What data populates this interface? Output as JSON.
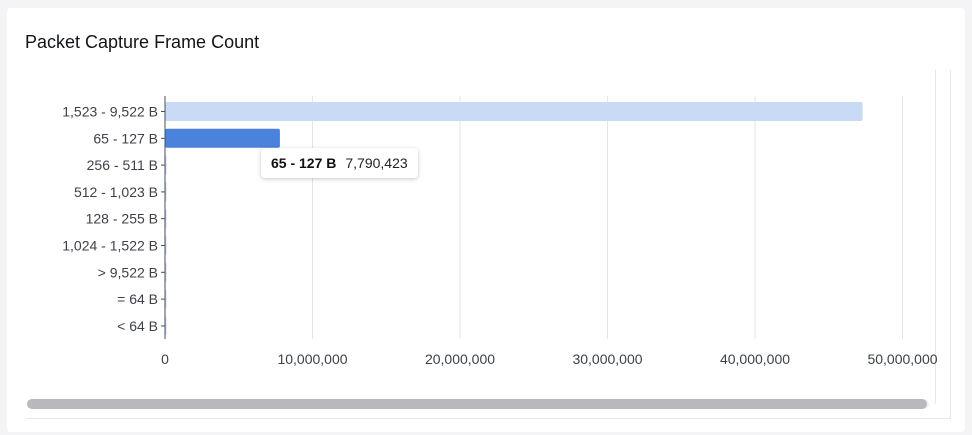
{
  "card": {
    "title": "Packet Capture Frame Count"
  },
  "tooltip": {
    "category": "65 - 127 B",
    "value": "7,790,423"
  },
  "chart_data": {
    "type": "bar",
    "orientation": "horizontal",
    "title": "Packet Capture Frame Count",
    "categories": [
      "1,523 - 9,522 B",
      "65 - 127 B",
      "256 - 511 B",
      "512 - 1,023 B",
      "128 - 255 B",
      "1,024 - 1,522 B",
      "> 9,522 B",
      "= 64 B",
      "< 64 B"
    ],
    "values": [
      47300000,
      7790423,
      80000,
      20000,
      15000,
      10000,
      5000,
      3000,
      2000
    ],
    "highlighted": "65 - 127 B",
    "xlim": [
      0,
      52000000
    ],
    "x_ticks": [
      0,
      10000000,
      20000000,
      30000000,
      40000000,
      50000000
    ],
    "x_tick_labels": [
      "0",
      "10,000,000",
      "20,000,000",
      "30,000,000",
      "40,000,000",
      "50,000,000"
    ],
    "grid": true,
    "colors": {
      "bar": "#c9daf6",
      "bar_highlight": "#4a82dc",
      "grid": "#e3e5ea",
      "axis": "#4a4e55"
    }
  }
}
